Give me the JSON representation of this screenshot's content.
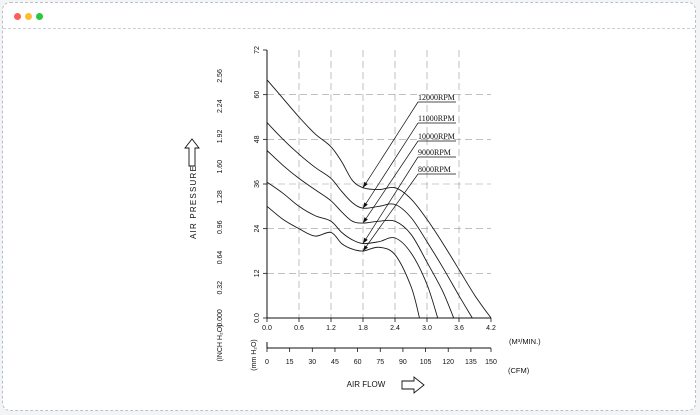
{
  "window": {
    "buttons": [
      "close",
      "minimize",
      "zoom"
    ]
  },
  "chart_data": {
    "type": "line",
    "title": "",
    "ylabel": "AIR PRESSURE",
    "xlabel": "AIR FLOW",
    "ylabel_units": {
      "mmh2o": "(mm H₂O)",
      "inchh2o": "(INCH H₂O)"
    },
    "xlabel_units": {
      "m3min": "(M³/MIN.)",
      "cfm": "(CFM)"
    },
    "grid": true,
    "xlim": [
      0,
      4.2
    ],
    "ylim": [
      0,
      72
    ],
    "x_ticks_m3min": [
      "0.0",
      "0.6",
      "1.2",
      "1.8",
      "2.4",
      "3.0",
      "3.6",
      "4.2"
    ],
    "y_ticks_mmh2o": [
      "0.0",
      "12",
      "24",
      "36",
      "48",
      "60",
      "72"
    ],
    "y_ticks_inchh2o": [
      "0.000",
      "0.32",
      "0.64",
      "0.96",
      "1.28",
      "1.60",
      "1.92",
      "2.24",
      "2.56"
    ],
    "x_ticks_cfm": [
      "0",
      "15",
      "30",
      "45",
      "60",
      "75",
      "90",
      "105",
      "120",
      "135",
      "150"
    ],
    "series": [
      {
        "name": "12000RPM",
        "x": [
          0,
          0.3,
          0.6,
          0.9,
          1.2,
          1.4,
          1.6,
          1.8,
          2.1,
          2.4,
          2.7,
          3.0,
          3.3,
          3.6,
          3.9,
          4.2
        ],
        "y": [
          64,
          59,
          54,
          49.5,
          46,
          42,
          37,
          35,
          34.5,
          35,
          32,
          26.5,
          20,
          13,
          6,
          0
        ]
      },
      {
        "name": "11000RPM",
        "x": [
          0,
          0.3,
          0.6,
          0.9,
          1.2,
          1.4,
          1.6,
          1.8,
          2.1,
          2.4,
          2.7,
          3.0,
          3.3,
          3.6,
          3.85
        ],
        "y": [
          52.5,
          48,
          44,
          40.5,
          37.5,
          34,
          31,
          29.5,
          30,
          30.5,
          27,
          20.5,
          13.5,
          6,
          0
        ]
      },
      {
        "name": "10000RPM",
        "x": [
          0,
          0.3,
          0.6,
          0.9,
          1.2,
          1.4,
          1.6,
          1.8,
          2.1,
          2.4,
          2.7,
          3.0,
          3.3,
          3.5
        ],
        "y": [
          45,
          41,
          37.5,
          34.5,
          31.5,
          28.5,
          26,
          25.5,
          26,
          26,
          22.5,
          15,
          7,
          0
        ]
      },
      {
        "name": "9000RPM",
        "x": [
          0,
          0.3,
          0.6,
          0.9,
          1.2,
          1.4,
          1.6,
          1.8,
          2.1,
          2.4,
          2.7,
          3.0,
          3.2
        ],
        "y": [
          36.5,
          33.5,
          30,
          27.5,
          26,
          23,
          21,
          20,
          20.5,
          21.5,
          17.5,
          9,
          0
        ]
      },
      {
        "name": "8000RPM",
        "x": [
          0,
          0.3,
          0.6,
          0.9,
          1.2,
          1.4,
          1.6,
          1.8,
          2.1,
          2.4,
          2.7,
          2.86
        ],
        "y": [
          30,
          26.5,
          24,
          22,
          23,
          20,
          18.5,
          18,
          19,
          17,
          8.5,
          0
        ]
      }
    ]
  }
}
